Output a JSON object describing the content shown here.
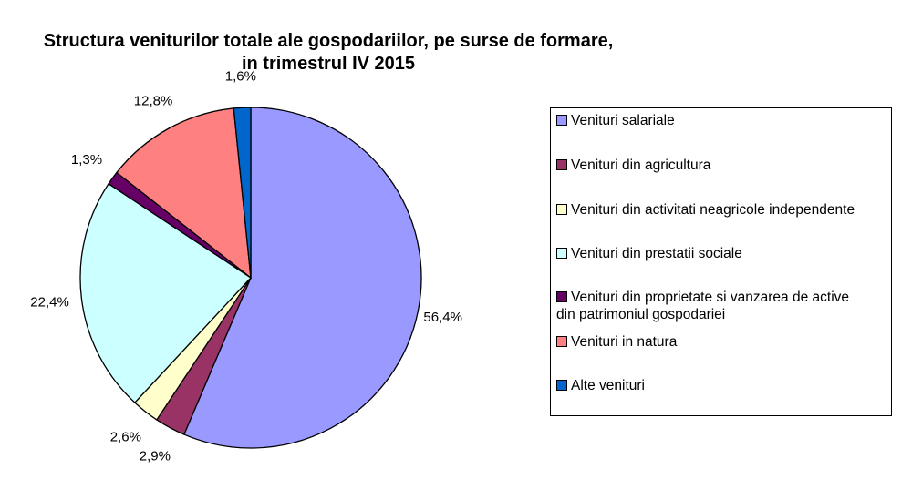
{
  "chart_data": {
    "type": "pie",
    "title": "Structura veniturilor totale ale gospodariilor, pe surse de formare,",
    "subtitle": "in trimestrul IV 2015",
    "start": "top",
    "direction": "clockwise",
    "legend_position": "right",
    "slices": [
      {
        "name": "Venituri salariale",
        "value": 56.4,
        "label": "56,4%",
        "color": "#9999FF"
      },
      {
        "name": "Venituri din agricultura",
        "value": 2.9,
        "label": "2,9%",
        "color": "#993366"
      },
      {
        "name": "Venituri din activitati neagricole independente",
        "value": 2.6,
        "label": "2,6%",
        "color": "#FFFFCC"
      },
      {
        "name": "Venituri din prestatii sociale",
        "value": 22.4,
        "label": "22,4%",
        "color": "#CCFFFF"
      },
      {
        "name": "Venituri din proprietate si vanzarea de active",
        "name2": "din patrimoniul gospodariei",
        "value": 1.3,
        "label": "1,3%",
        "color": "#660066"
      },
      {
        "name": "Venituri in natura",
        "value": 12.8,
        "label": "12,8%",
        "color": "#FF8080"
      },
      {
        "name": "Alte venituri",
        "value": 1.6,
        "label": "1,6%",
        "color": "#0066CC"
      }
    ]
  }
}
